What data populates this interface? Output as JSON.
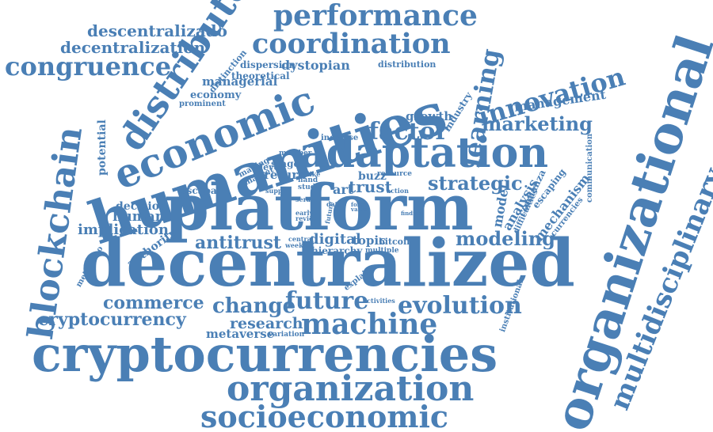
{
  "color": "#4a7fb5",
  "words": [
    {
      "id": "performance",
      "text": "performance"
    },
    {
      "id": "descentralizado",
      "text": "descentralizado"
    },
    {
      "id": "decentralization",
      "text": "decentralization"
    },
    {
      "id": "distributed",
      "text": "distributed"
    },
    {
      "id": "coordination",
      "text": "coordination"
    },
    {
      "id": "congruence",
      "text": "congruence"
    },
    {
      "id": "distinction",
      "text": "distinction"
    },
    {
      "id": "dispersion",
      "text": "dispersion"
    },
    {
      "id": "theoretical",
      "text": "theoretical"
    },
    {
      "id": "dystopian",
      "text": "dystopian"
    },
    {
      "id": "distribution",
      "text": "distribution"
    },
    {
      "id": "managerial",
      "text": "managerial"
    },
    {
      "id": "learning",
      "text": "learning"
    },
    {
      "id": "innovation",
      "text": "innovation"
    },
    {
      "id": "economic",
      "text": "economic"
    },
    {
      "id": "economy",
      "text": "economy"
    },
    {
      "id": "prominent",
      "text": "prominent"
    },
    {
      "id": "humanities",
      "text": "humanities"
    },
    {
      "id": "management",
      "text": "management"
    },
    {
      "id": "industry",
      "text": "industry"
    },
    {
      "id": "marketing",
      "text": "marketing"
    },
    {
      "id": "growth",
      "text": "growth"
    },
    {
      "id": "factor",
      "text": "factor"
    },
    {
      "id": "organizational",
      "text": "organizational"
    },
    {
      "id": "multidisciplinary",
      "text": "multidisciplinary"
    },
    {
      "id": "blockchain",
      "text": "blockchain"
    },
    {
      "id": "potential",
      "text": "potential"
    },
    {
      "id": "adaptation",
      "text": "adaptation"
    },
    {
      "id": "increase",
      "text": "increase"
    },
    {
      "id": "member",
      "text": "member"
    },
    {
      "id": "stage",
      "text": "stage"
    },
    {
      "id": "making",
      "text": "making"
    },
    {
      "id": "level",
      "text": "level"
    },
    {
      "id": "market",
      "text": "market"
    },
    {
      "id": "return",
      "text": "return"
    },
    {
      "id": "unlike",
      "text": "unlike"
    },
    {
      "id": "hand",
      "text": "hand"
    },
    {
      "id": "study",
      "text": "study"
    },
    {
      "id": "buzz",
      "text": "buzz"
    },
    {
      "id": "resource",
      "text": "resource"
    },
    {
      "id": "strategic",
      "text": "strategic"
    },
    {
      "id": "communication",
      "text": "communication"
    },
    {
      "id": "escapar",
      "text": "escapar"
    },
    {
      "id": "supply",
      "text": "supply"
    },
    {
      "id": "trust",
      "text": "trust"
    },
    {
      "id": "art",
      "text": "art"
    },
    {
      "id": "action",
      "text": "action"
    },
    {
      "id": "analysis",
      "text": "analysis"
    },
    {
      "id": "confianza",
      "text": "confianza"
    },
    {
      "id": "escaping",
      "text": "escaping"
    },
    {
      "id": "decision",
      "text": "decision"
    },
    {
      "id": "human",
      "text": "human"
    },
    {
      "id": "platform",
      "text": "platform"
    },
    {
      "id": "sera",
      "text": "sera"
    },
    {
      "id": "early",
      "text": "early"
    },
    {
      "id": "review",
      "text": "review"
    },
    {
      "id": "data",
      "text": "data"
    },
    {
      "id": "future_small",
      "text": "future"
    },
    {
      "id": "value",
      "text": "value"
    },
    {
      "id": "form",
      "text": "form"
    },
    {
      "id": "finding",
      "text": "finding"
    },
    {
      "id": "model",
      "text": "model"
    },
    {
      "id": "difficulties",
      "text": "difficulties"
    },
    {
      "id": "mechanism",
      "text": "mechanism"
    },
    {
      "id": "currencies",
      "text": "currencies"
    },
    {
      "id": "implication",
      "text": "implication"
    },
    {
      "id": "authority",
      "text": "authority"
    },
    {
      "id": "antitrust",
      "text": "antitrust"
    },
    {
      "id": "digital",
      "text": "digital"
    },
    {
      "id": "topic",
      "text": "topic"
    },
    {
      "id": "bitcoin",
      "text": "bitcoin"
    },
    {
      "id": "central",
      "text": "central"
    },
    {
      "id": "weekly",
      "text": "weekly"
    },
    {
      "id": "hierarchy",
      "text": "hierarchy"
    },
    {
      "id": "multiple",
      "text": "multiple"
    },
    {
      "id": "modeling",
      "text": "modeling"
    },
    {
      "id": "metaverso",
      "text": "metaverso"
    },
    {
      "id": "decentralized",
      "text": "decentralized"
    },
    {
      "id": "explain",
      "text": "explain"
    },
    {
      "id": "activities",
      "text": "activities"
    },
    {
      "id": "institutional",
      "text": "institutional"
    },
    {
      "id": "commerce",
      "text": "commerce"
    },
    {
      "id": "change",
      "text": "change"
    },
    {
      "id": "future",
      "text": "future"
    },
    {
      "id": "evolution",
      "text": "evolution"
    },
    {
      "id": "cryptocurrency",
      "text": "cryptocurrency"
    },
    {
      "id": "research",
      "text": "research"
    },
    {
      "id": "machine",
      "text": "machine"
    },
    {
      "id": "metaverse",
      "text": "metaverse"
    },
    {
      "id": "variation",
      "text": "variation"
    },
    {
      "id": "cryptocurrencies",
      "text": "cryptocurrencies"
    },
    {
      "id": "organization",
      "text": "organization"
    },
    {
      "id": "socioeconomic",
      "text": "socioeconomic"
    }
  ]
}
